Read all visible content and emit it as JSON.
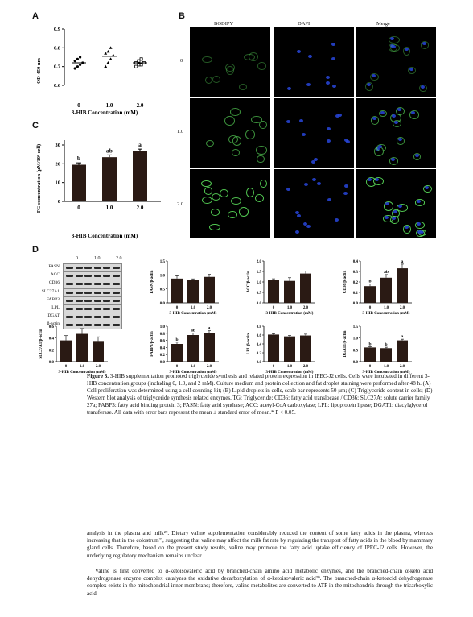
{
  "panels": {
    "A": "A",
    "B": "B",
    "C": "C",
    "D": "D"
  },
  "panelA": {
    "ylabel": "OD 450 nm",
    "xlabel": "3-HIB Concentration (mM)",
    "yticks": [
      "0.6",
      "0.7",
      "0.8",
      "0.9"
    ],
    "xticks": [
      "0",
      "1.0",
      "2.0"
    ]
  },
  "panelB": {
    "cols": [
      "BODIPY",
      "DAPI",
      "Merge"
    ],
    "rows": [
      "0",
      "1.0",
      "2.0"
    ]
  },
  "panelC": {
    "ylabel": "TG concentration (μM/10⁶ cell)",
    "xlabel": "3-HIB Concentration (mM)",
    "yticks": [
      "0",
      "10",
      "20",
      "30"
    ],
    "xticks": [
      "0",
      "1.0",
      "2.0"
    ],
    "sig": [
      "b",
      "ab",
      "a"
    ]
  },
  "panelD": {
    "blot_header": [
      "0",
      "1.0",
      "2.0"
    ],
    "blot_labels": [
      "FASN",
      "ACC",
      "CD36",
      "SLC27A1",
      "FABP3",
      "LPL",
      "DGAT",
      "β-actin"
    ],
    "xlabel": "3-HIB Concentration (mM)",
    "xticks": [
      "0",
      "1.0",
      "2.0"
    ]
  },
  "chart_data": [
    {
      "type": "scatter",
      "panel": "A",
      "x": [
        "0",
        "1.0",
        "2.0"
      ],
      "means": [
        0.72,
        0.755,
        0.72
      ],
      "points": [
        [
          0.69,
          0.7,
          0.71,
          0.72,
          0.73,
          0.74,
          0.75
        ],
        [
          0.7,
          0.72,
          0.74,
          0.76,
          0.77,
          0.78,
          0.8
        ],
        [
          0.7,
          0.71,
          0.71,
          0.72,
          0.72,
          0.73,
          0.74
        ]
      ],
      "ylabel": "OD 450 nm",
      "xlabel": "3-HIB Concentration (mM)",
      "ylim": [
        0.6,
        0.9
      ]
    },
    {
      "type": "bar",
      "panel": "C",
      "categories": [
        "0",
        "1.0",
        "2.0"
      ],
      "values": [
        19.5,
        23.5,
        27
      ],
      "errors": [
        1,
        1.2,
        0.8
      ],
      "labels": [
        "b",
        "ab",
        "a"
      ],
      "ylabel": "TG concentration (μM/10⁶ cell)",
      "xlabel": "3-HIB Concentration (mM)",
      "ylim": [
        0,
        30
      ]
    },
    {
      "type": "bar",
      "panel": "FASN",
      "categories": [
        "0",
        "1.0",
        "2.0"
      ],
      "values": [
        0.87,
        0.82,
        0.93
      ],
      "errors": [
        0.1,
        0.04,
        0.09
      ],
      "labels": [
        "",
        "",
        ""
      ],
      "ylabel": "FASN/β-actin",
      "ylim": [
        0,
        1.5
      ],
      "yticks": [
        "0.0",
        "0.5",
        "1.0",
        "1.5"
      ]
    },
    {
      "type": "bar",
      "panel": "ACC",
      "categories": [
        "0",
        "1.0",
        "2.0"
      ],
      "values": [
        1.1,
        1.05,
        1.4
      ],
      "errors": [
        0.05,
        0.15,
        0.12
      ],
      "labels": [
        "",
        "",
        ""
      ],
      "ylabel": "ACC/β-actin",
      "ylim": [
        0,
        2.0
      ],
      "yticks": [
        "0.0",
        "0.5",
        "1.0",
        "1.5",
        "2.0"
      ]
    },
    {
      "type": "bar",
      "panel": "CD36",
      "categories": [
        "0",
        "1.0",
        "2.0"
      ],
      "values": [
        0.16,
        0.24,
        0.33
      ],
      "errors": [
        0.02,
        0.03,
        0.04
      ],
      "labels": [
        "b",
        "ab",
        "a"
      ],
      "ylabel": "CD36/β-actin",
      "ylim": [
        0,
        0.4
      ],
      "yticks": [
        "0.0",
        "0.1",
        "0.2",
        "0.3",
        "0.4"
      ]
    },
    {
      "type": "bar",
      "panel": "SLC27A1",
      "categories": [
        "0",
        "1.0",
        "2.0"
      ],
      "values": [
        0.36,
        0.47,
        0.35
      ],
      "errors": [
        0.08,
        0.09,
        0.07
      ],
      "labels": [
        "",
        "",
        ""
      ],
      "ylabel": "SLC27A1/β-actin",
      "ylim": [
        0,
        0.6
      ],
      "yticks": [
        "0.0",
        "0.2",
        "0.4",
        "0.6"
      ]
    },
    {
      "type": "bar",
      "panel": "FABP3",
      "categories": [
        "0",
        "1.0",
        "2.0"
      ],
      "values": [
        0.5,
        0.75,
        0.8
      ],
      "errors": [
        0.05,
        0.06,
        0.07
      ],
      "labels": [
        "b",
        "ab",
        "a"
      ],
      "ylabel": "FABP3/β-actin",
      "ylim": [
        0,
        1.0
      ],
      "yticks": [
        "0.0",
        "0.2",
        "0.4",
        "0.6",
        "0.8",
        "1.0"
      ]
    },
    {
      "type": "bar",
      "panel": "LPL",
      "categories": [
        "0",
        "1.0",
        "2.0"
      ],
      "values": [
        0.61,
        0.57,
        0.59
      ],
      "errors": [
        0.02,
        0.02,
        0.03
      ],
      "labels": [
        "",
        "",
        ""
      ],
      "ylabel": "LPL/β-actin",
      "ylim": [
        0,
        0.8
      ],
      "yticks": [
        "0.0",
        "0.2",
        "0.4",
        "0.6",
        "0.8"
      ]
    },
    {
      "type": "bar",
      "panel": "DGAT1",
      "categories": [
        "0",
        "1.0",
        "2.0"
      ],
      "values": [
        0.6,
        0.57,
        0.9
      ],
      "errors": [
        0.03,
        0.04,
        0.05
      ],
      "labels": [
        "b",
        "b",
        "a"
      ],
      "ylabel": "DGAT1/β-actin",
      "ylim": [
        0,
        1.5
      ],
      "yticks": [
        "0.0",
        "0.5",
        "1.0",
        "1.5"
      ]
    }
  ],
  "caption": {
    "title": "Figure 3.",
    "text": "3-HIB supplementation promoted triglyceride synthesis and related protein expression in IPEC-J2 cells. Cells were incubated in different 3-HIB concentration groups (including 0, 1.0, and 2 mM). Culture medium and protein collection and fat droplet staining were performed after 48 h. (A) Cell proliferation was determined using a cell counting kit; (B) Lipid droplets in cells, scale bar represents 50 μm; (C) Triglyceride content in cells; (D) Western blot analysis of triglyceride synthesis related enzymes. TG: Triglyceride; CD36: fatty acid translocase / CD36; SLC27A: solute carrier family 27a; FABP3: fatty acid binding protein 3; FASN: fatty acid synthase; ACC: acetyl-CoA carboxylase; LPL: lipoprotein lipase; DGAT1: diacylglycerol transferase. All data with error bars represent the mean ± standard error of mean.* P < 0.05."
  },
  "body": {
    "p1": "analysis in the plasma and milk²⁹. Dietary valine supplementation considerably reduced the content of some fatty acids in the plasma, whereas increasing that in the colostrum²², suggesting that valine may affect the milk fat rate by regulating the transport of fatty acids in the blood by mammary gland cells. Therefore, based on the present study results, valine may promote the fatty acid uptake efficiency of IPEC-J2 cells. However, the underlying regulatory mechanism remains unclear.",
    "p2": "Valine is first converted to α-ketoisovaleric acid by branched-chain amino acid metabolic enzymes, and the branched-chain α-keto acid dehydrogenase enzyme complex catalyzes the oxidative decarboxylation of α-ketoisovaleric acid³⁰. The branched-chain α-ketoacid dehydrogenase complex exists in the mitochondrial inner membrane; therefore, valine metabolites are converted to ATP in the mitochondria through the tricarboxylic acid"
  }
}
